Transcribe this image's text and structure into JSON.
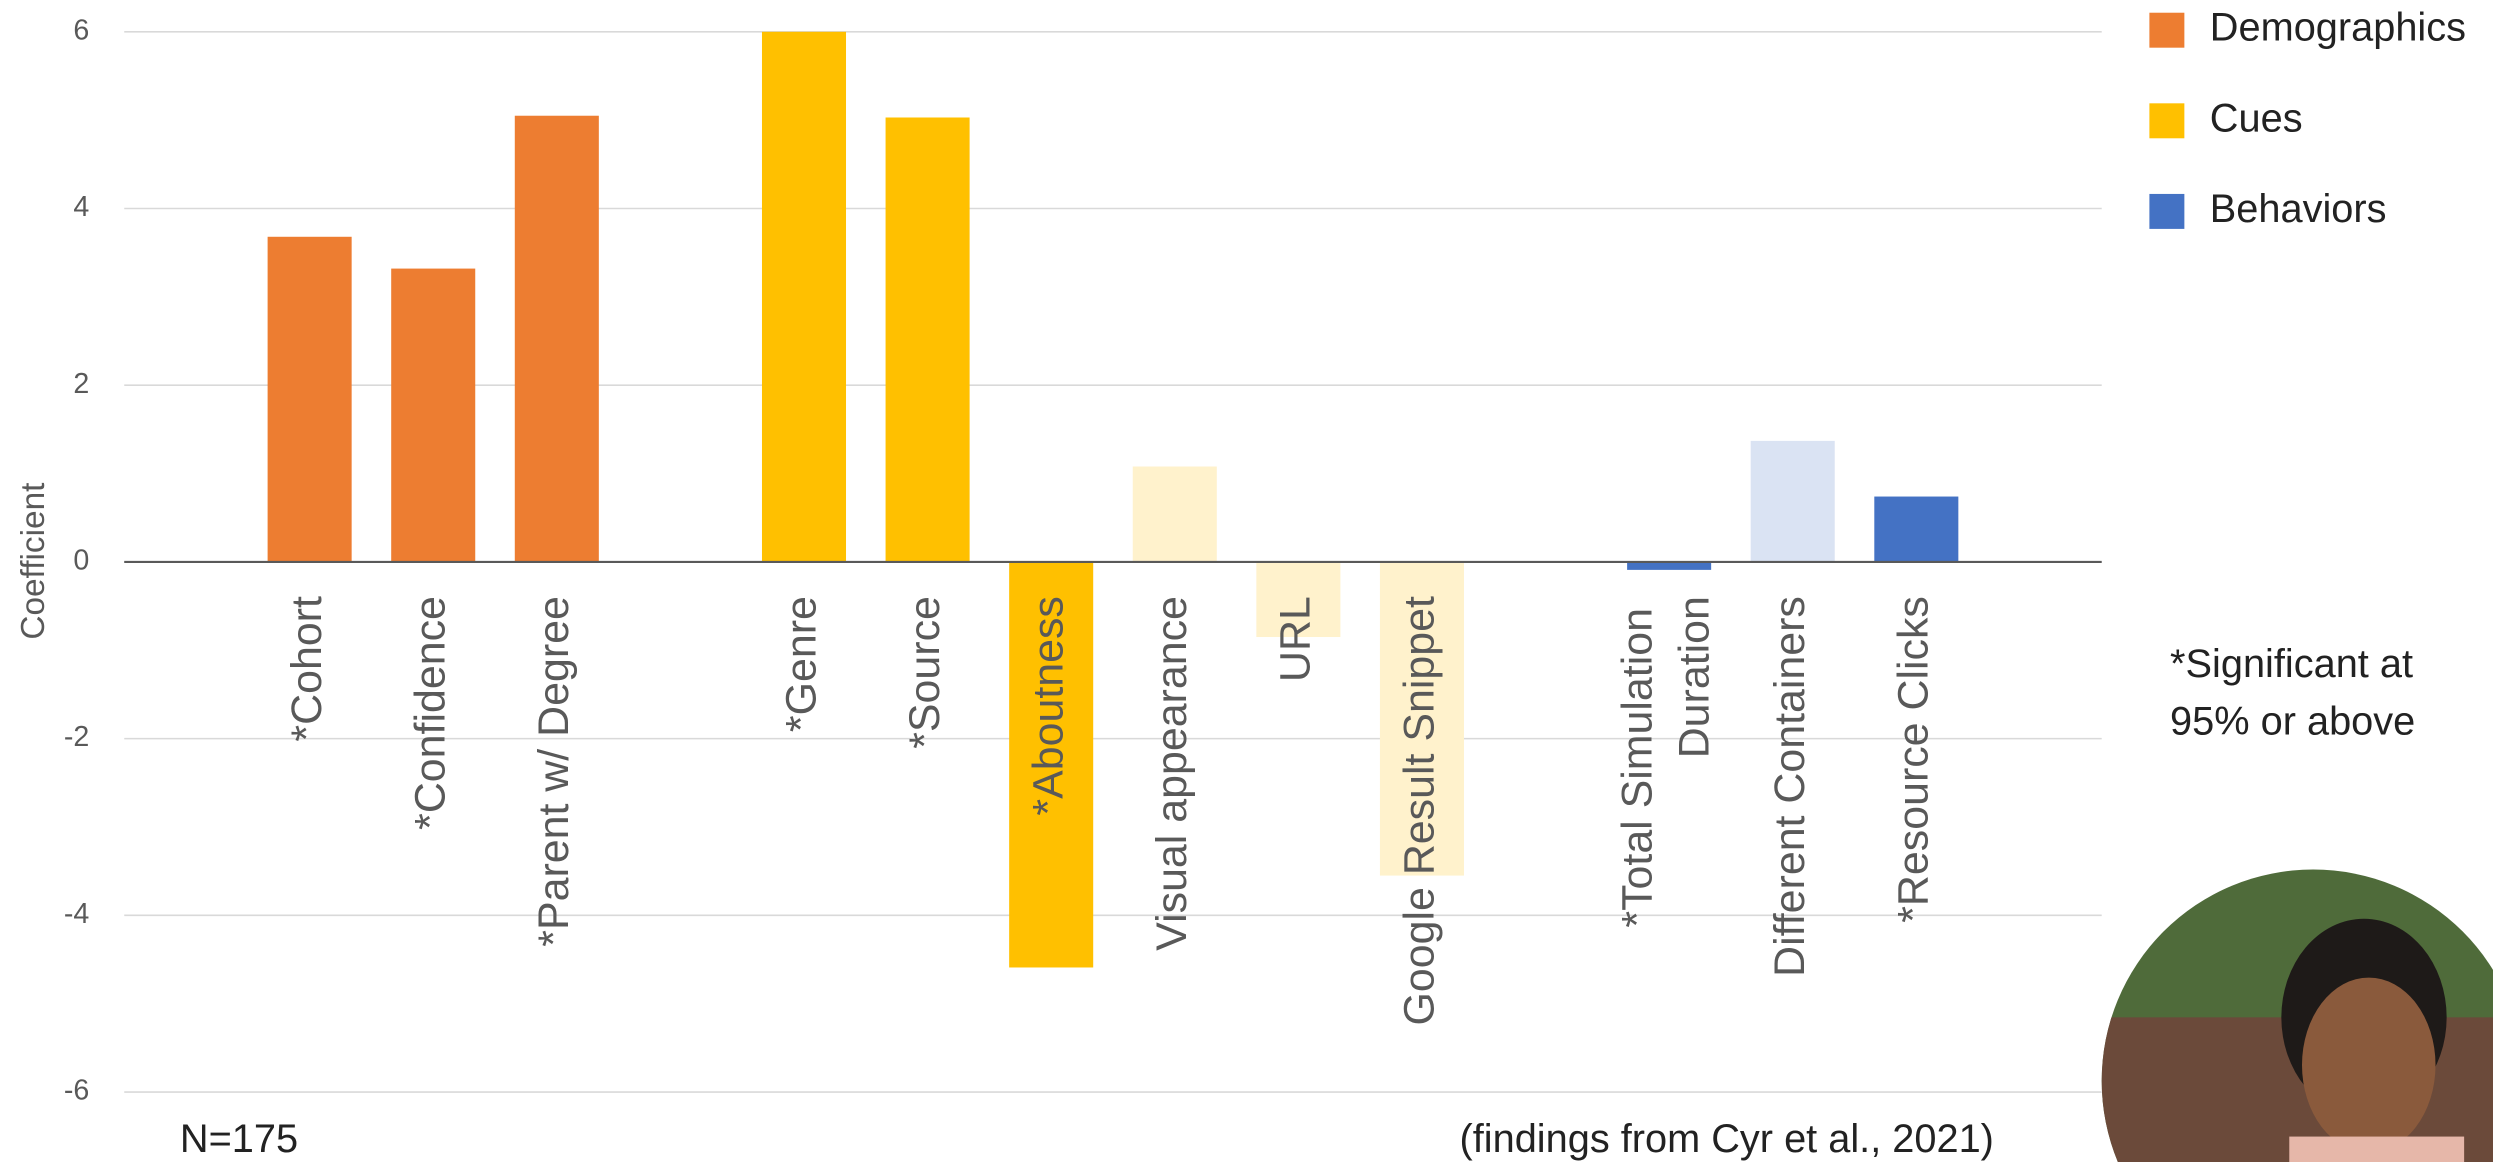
{
  "chart_data": {
    "type": "bar",
    "y_label": "Coefficient",
    "categories": [
      null,
      "*Cohort",
      "*Confidence",
      "*Parent w/ Degree",
      null,
      "*Genre",
      "*Source",
      "*Aboutness",
      "Visual appearance",
      "URL",
      "Google Result Snippet",
      null,
      "*Total Simulation Duration",
      "Different Containers",
      "*Resource Clicks",
      null
    ],
    "series": [
      {
        "name": "Demographics",
        "color": "#ed7d31",
        "values": [
          null,
          3.68,
          3.32,
          5.05,
          null,
          null,
          null,
          null,
          null,
          null,
          null,
          null,
          null,
          null,
          null,
          null
        ]
      },
      {
        "name": "Cues",
        "color": "#ffc000",
        "values": [
          null,
          null,
          null,
          null,
          null,
          6.0,
          5.03,
          -4.59,
          1.08,
          -0.85,
          -3.55,
          null,
          null,
          null,
          null,
          null
        ],
        "bar_colors": [
          null,
          null,
          null,
          null,
          null,
          "#ffc000",
          "#ffc000",
          "#ffc000",
          "#fff2cc",
          "#fff2cc",
          "#fff2cc",
          null,
          null,
          null,
          null,
          null
        ]
      },
      {
        "name": "Behaviors",
        "color": "#4472c4",
        "values": [
          null,
          null,
          null,
          null,
          null,
          null,
          null,
          null,
          null,
          null,
          null,
          null,
          -0.09,
          1.37,
          0.74,
          null
        ],
        "bar_colors": [
          null,
          null,
          null,
          null,
          null,
          null,
          null,
          null,
          null,
          null,
          null,
          null,
          "#4472c4",
          "#dae3f3",
          "#4472c4",
          null
        ]
      }
    ],
    "ylim": [
      -6,
      6
    ],
    "yticks": [
      -6,
      -4,
      -2,
      0,
      2,
      4,
      6
    ],
    "grid": true,
    "legend": "top-right",
    "note": "*Significant at 95% or above",
    "sample": "N=175",
    "source": "(findings from Cyr et al., 2021)"
  }
}
